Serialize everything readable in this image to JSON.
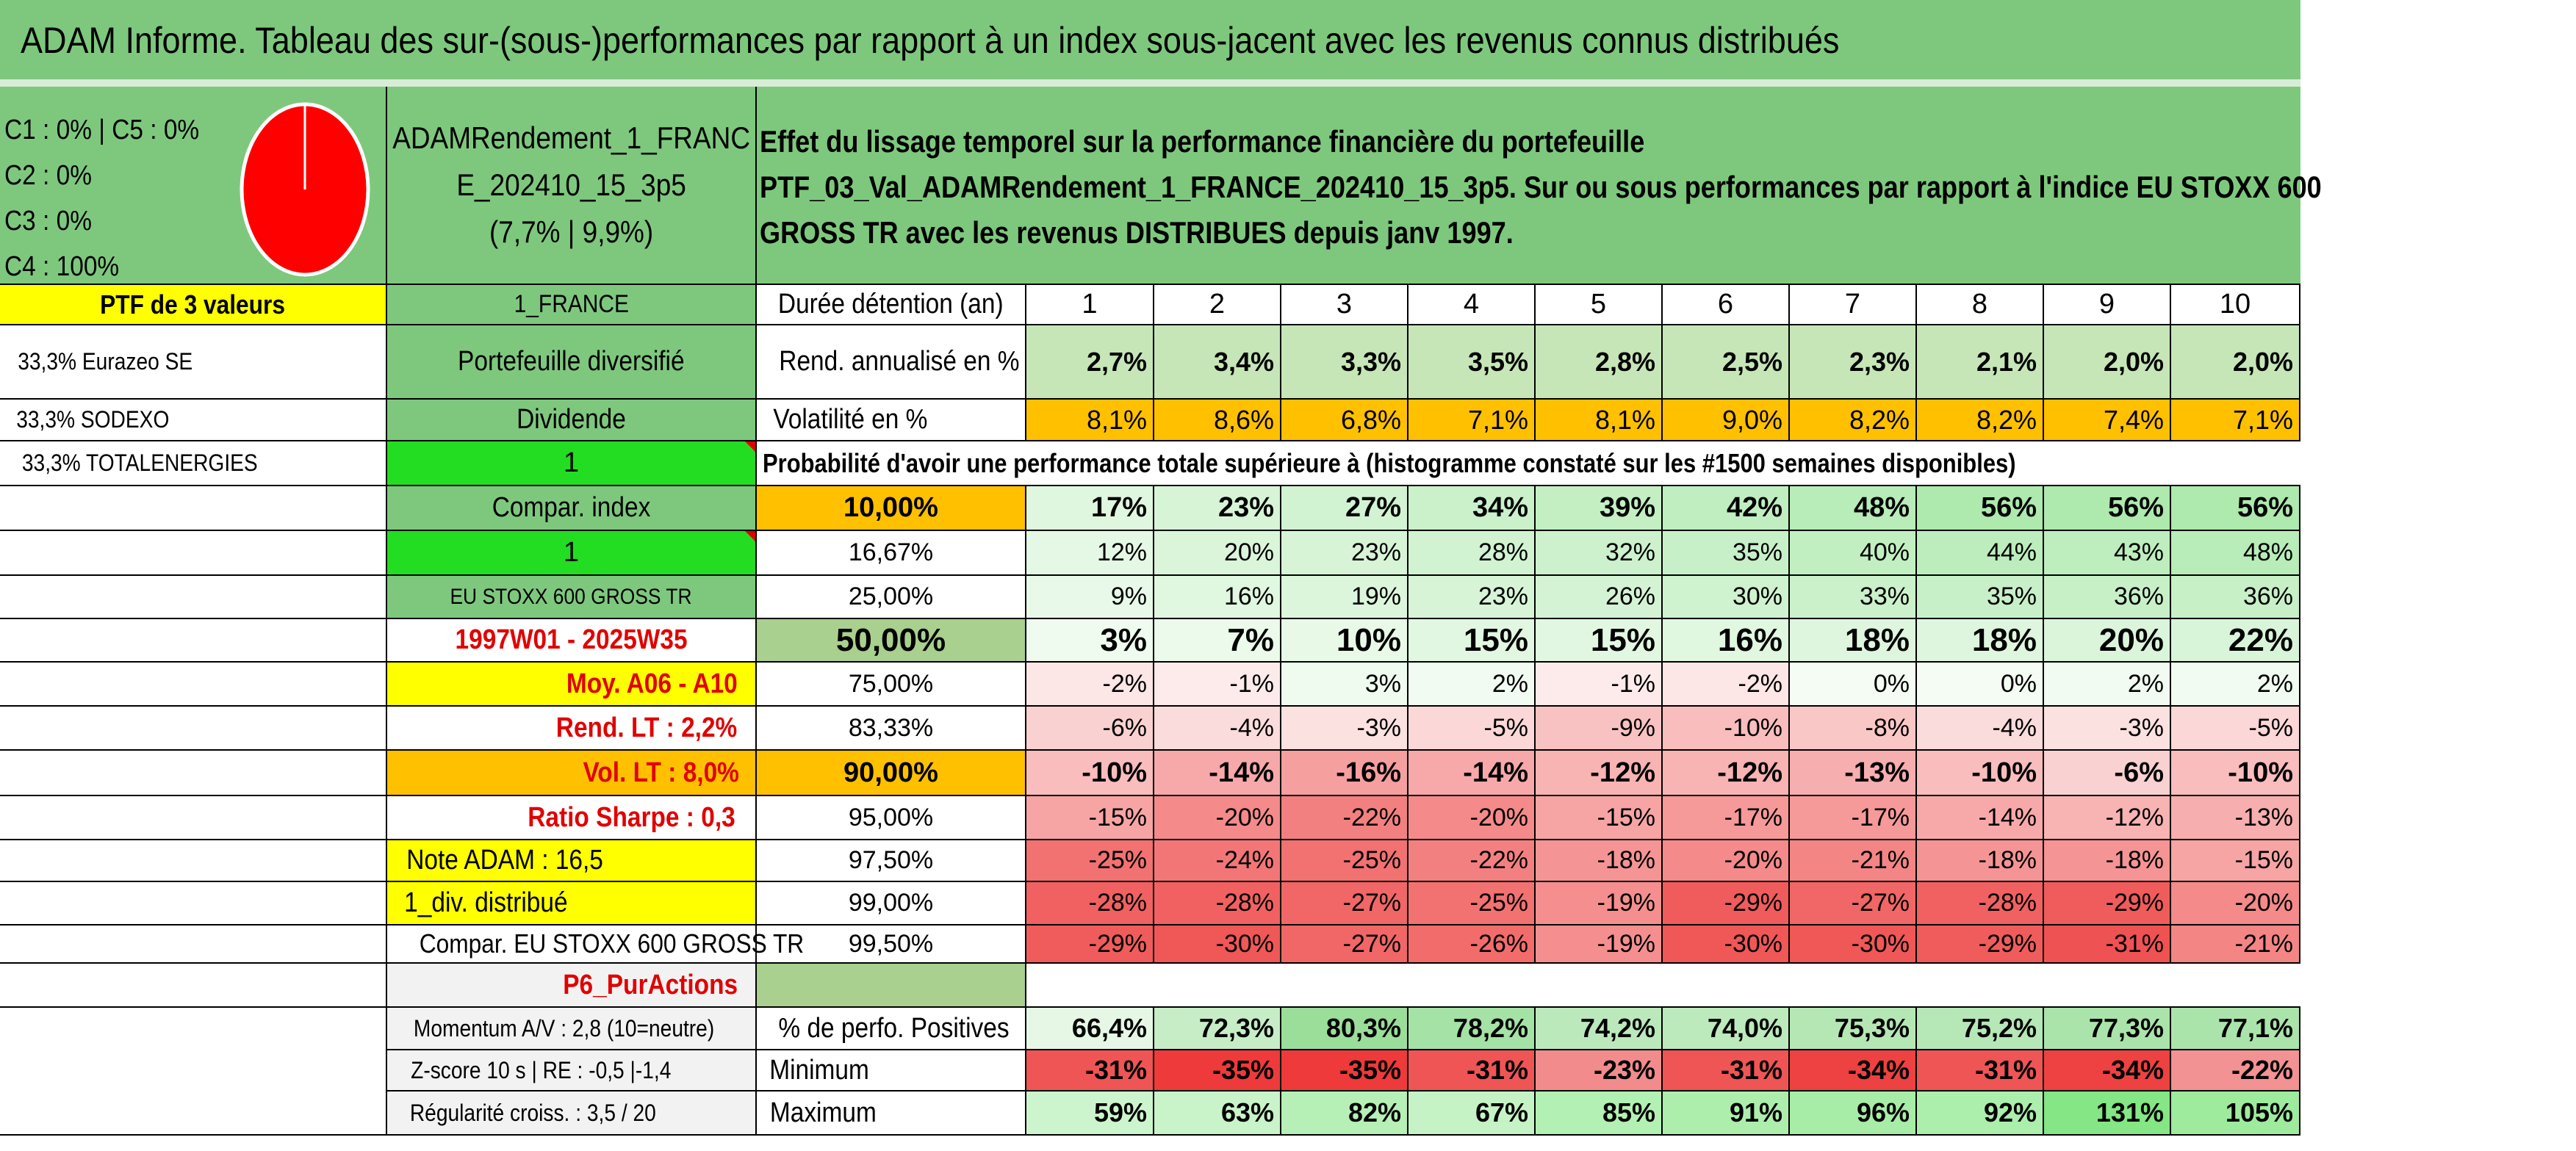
{
  "title": "ADAM Informe. Tableau des sur-(sous-)performances par rapport à un index sous-jacent avec les revenus connus distribués",
  "classes": {
    "lines": [
      "C1 : 0% | C5 : 0%",
      "C2 : 0%",
      "C3 : 0%",
      "C4 : 100%"
    ],
    "pie_color": "#ff0000",
    "pie_share_c4": 100
  },
  "portfolio_name": [
    "ADAMRendement_1_FRANC",
    "E_202410_15_3p5",
    "(7,7% | 9,9%)"
  ],
  "effect_text": [
    "Effet du lissage temporel sur la performance financière du portefeuille",
    "PTF_03_Val_ADAMRendement_1_FRANCE_202410_15_3p5. Sur ou sous performances par rapport à l'indice EU STOXX 600",
    "GROSS TR avec les revenus DISTRIBUES depuis janv 1997."
  ],
  "left": {
    "ptf_header": "PTF de 3 valeurs",
    "holdings": [
      "33,3% Eurazeo SE",
      "33,3% SODEXO",
      "33,3% TOTALENERGIES"
    ]
  },
  "mid": {
    "country": "1_FRANCE",
    "portfolio_type": "Portefeuille diversifié",
    "dividend_label": "Dividende",
    "dividend_value": "1",
    "compar_index_label": "Compar. index",
    "compar_index_value": "1",
    "index_name": "EU STOXX 600 GROSS TR",
    "period": "1997W01 - 2025W35",
    "moy": "Moy. A06 - A10",
    "rend_lt": "Rend. LT : 2,2%",
    "vol_lt": "Vol. LT : 8,0%",
    "sharpe": "Ratio Sharpe : 0,3",
    "note_adam": "Note ADAM : 16,5",
    "div_distrib": "1_div. distribué",
    "compar_eu": "Compar. EU STOXX 600 GROSS TR",
    "p6": "P6_PurActions",
    "momentum": "Momentum A/V : 2,8 (10=neutre)",
    "zscore": "Z-score 10 s | RE : -0,5 |-1,4",
    "regularite": "Régularité croiss. : 3,5 / 20"
  },
  "table": {
    "duree_label": "Durée détention (an)",
    "years": [
      "1",
      "2",
      "3",
      "4",
      "5",
      "6",
      "7",
      "8",
      "9",
      "10"
    ],
    "rend_label": "Rend. annualisé en %",
    "rend": [
      "2,7%",
      "3,4%",
      "3,3%",
      "3,5%",
      "2,8%",
      "2,5%",
      "2,3%",
      "2,1%",
      "2,0%",
      "2,0%"
    ],
    "vol_label": "Volatilité en %",
    "vol": [
      "8,1%",
      "8,6%",
      "6,8%",
      "7,1%",
      "8,1%",
      "9,0%",
      "8,2%",
      "8,2%",
      "7,4%",
      "7,1%"
    ],
    "proba_label": "Probabilité d'avoir une performance totale supérieure à (histogramme constaté sur les #1500 semaines disponibles)",
    "quantile_rows": [
      {
        "q": "10,00%",
        "vals": [
          "17%",
          "23%",
          "27%",
          "34%",
          "39%",
          "42%",
          "48%",
          "56%",
          "56%",
          "56%"
        ],
        "nums": [
          17,
          23,
          27,
          34,
          39,
          42,
          48,
          56,
          56,
          56
        ]
      },
      {
        "q": "16,67%",
        "vals": [
          "12%",
          "20%",
          "23%",
          "28%",
          "32%",
          "35%",
          "40%",
          "44%",
          "43%",
          "48%"
        ],
        "nums": [
          12,
          20,
          23,
          28,
          32,
          35,
          40,
          44,
          43,
          48
        ]
      },
      {
        "q": "25,00%",
        "vals": [
          "9%",
          "16%",
          "19%",
          "23%",
          "26%",
          "30%",
          "33%",
          "35%",
          "36%",
          "36%"
        ],
        "nums": [
          9,
          16,
          19,
          23,
          26,
          30,
          33,
          35,
          36,
          36
        ]
      },
      {
        "q": "50,00%",
        "vals": [
          "3%",
          "7%",
          "10%",
          "15%",
          "15%",
          "16%",
          "18%",
          "18%",
          "20%",
          "22%"
        ],
        "nums": [
          3,
          7,
          10,
          15,
          15,
          16,
          18,
          18,
          20,
          22
        ]
      },
      {
        "q": "75,00%",
        "vals": [
          "-2%",
          "-1%",
          "3%",
          "2%",
          "-1%",
          "-2%",
          "0%",
          "0%",
          "2%",
          "2%"
        ],
        "nums": [
          -2,
          -1,
          3,
          2,
          -1,
          -2,
          0,
          0,
          2,
          2
        ]
      },
      {
        "q": "83,33%",
        "vals": [
          "-6%",
          "-4%",
          "-3%",
          "-5%",
          "-9%",
          "-10%",
          "-8%",
          "-4%",
          "-3%",
          "-5%"
        ],
        "nums": [
          -6,
          -4,
          -3,
          -5,
          -9,
          -10,
          -8,
          -4,
          -3,
          -5
        ]
      },
      {
        "q": "90,00%",
        "vals": [
          "-10%",
          "-14%",
          "-16%",
          "-14%",
          "-12%",
          "-12%",
          "-13%",
          "-10%",
          "-6%",
          "-10%"
        ],
        "nums": [
          -10,
          -14,
          -16,
          -14,
          -12,
          -12,
          -13,
          -10,
          -6,
          -10
        ]
      },
      {
        "q": "95,00%",
        "vals": [
          "-15%",
          "-20%",
          "-22%",
          "-20%",
          "-15%",
          "-17%",
          "-17%",
          "-14%",
          "-12%",
          "-13%"
        ],
        "nums": [
          -15,
          -20,
          -22,
          -20,
          -15,
          -17,
          -17,
          -14,
          -12,
          -13
        ]
      },
      {
        "q": "97,50%",
        "vals": [
          "-25%",
          "-24%",
          "-25%",
          "-22%",
          "-18%",
          "-20%",
          "-21%",
          "-18%",
          "-18%",
          "-15%"
        ],
        "nums": [
          -25,
          -24,
          -25,
          -22,
          -18,
          -20,
          -21,
          -18,
          -18,
          -15
        ]
      },
      {
        "q": "99,00%",
        "vals": [
          "-28%",
          "-28%",
          "-27%",
          "-25%",
          "-19%",
          "-29%",
          "-27%",
          "-28%",
          "-29%",
          "-20%"
        ],
        "nums": [
          -28,
          -28,
          -27,
          -25,
          -19,
          -29,
          -27,
          -28,
          -29,
          -20
        ]
      },
      {
        "q": "99,50%",
        "vals": [
          "-29%",
          "-30%",
          "-27%",
          "-26%",
          "-19%",
          "-30%",
          "-30%",
          "-29%",
          "-31%",
          "-21%"
        ],
        "nums": [
          -29,
          -30,
          -27,
          -26,
          -19,
          -30,
          -30,
          -29,
          -31,
          -21
        ]
      }
    ],
    "pos_label": "% de perfo. Positives",
    "pos": [
      "66,4%",
      "72,3%",
      "80,3%",
      "78,2%",
      "74,2%",
      "74,0%",
      "75,3%",
      "75,2%",
      "77,3%",
      "77,1%"
    ],
    "pos_nums": [
      66.4,
      72.3,
      80.3,
      78.2,
      74.2,
      74.0,
      75.3,
      75.2,
      77.3,
      77.1
    ],
    "min_label": "Minimum",
    "min": [
      "-31%",
      "-35%",
      "-35%",
      "-31%",
      "-23%",
      "-31%",
      "-34%",
      "-31%",
      "-34%",
      "-22%"
    ],
    "min_nums": [
      -31,
      -35,
      -35,
      -31,
      -23,
      -31,
      -34,
      -31,
      -34,
      -22
    ],
    "max_label": "Maximum",
    "max": [
      "59%",
      "63%",
      "82%",
      "67%",
      "85%",
      "91%",
      "96%",
      "92%",
      "131%",
      "105%"
    ],
    "max_nums": [
      59,
      63,
      82,
      67,
      85,
      91,
      96,
      92,
      131,
      105
    ]
  }
}
